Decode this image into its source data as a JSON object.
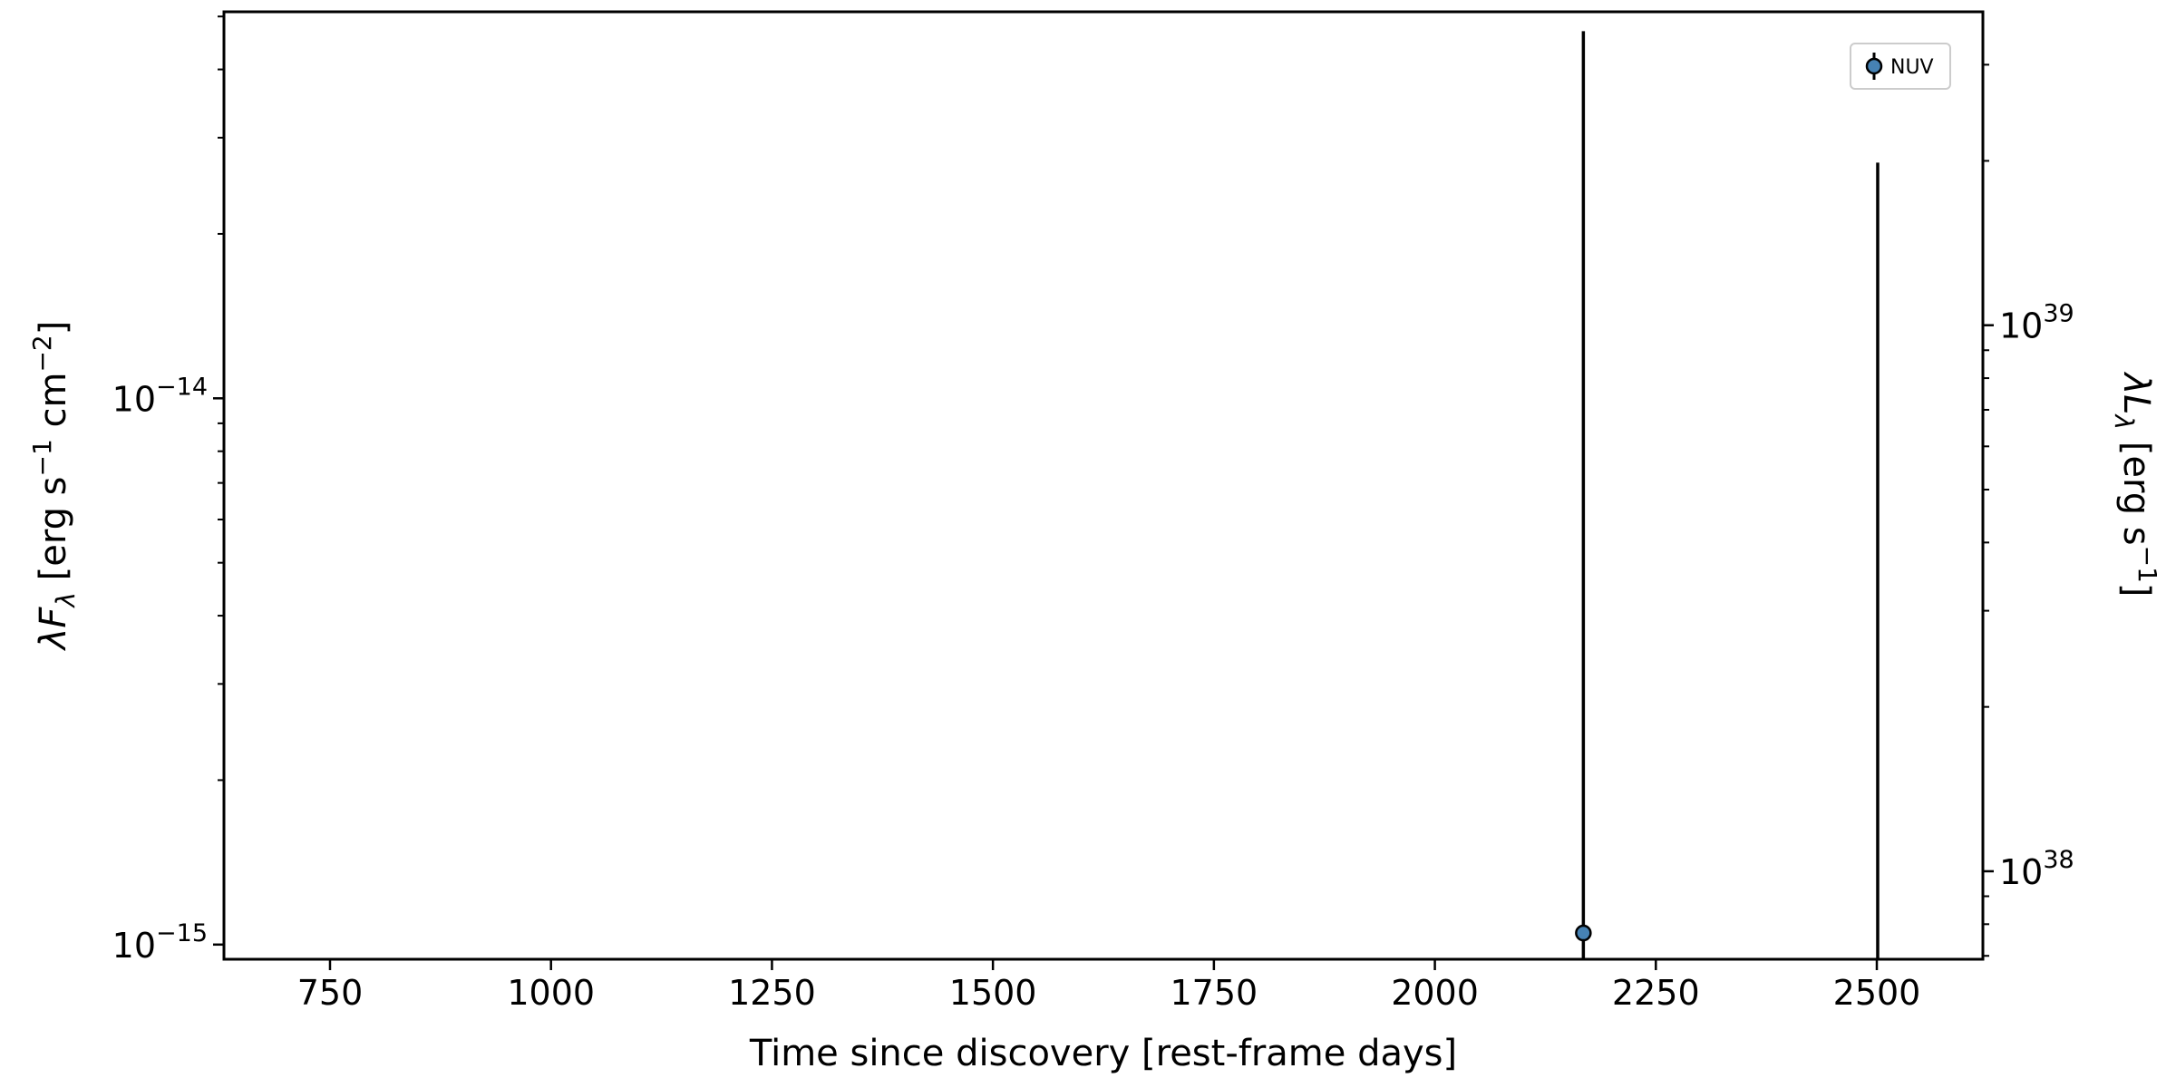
{
  "chart_data": {
    "type": "scatter",
    "xlabel": "Time since discovery [rest-frame days]",
    "ylabel_left": "λF_λ [erg s^-1 cm^-2]",
    "ylabel_right": "λL_λ [erg s^-1]",
    "xlim": [
      630,
      2620
    ],
    "xticks": [
      750,
      1000,
      1250,
      1500,
      1750,
      2000,
      2250,
      2500
    ],
    "y_scale": "log",
    "ylim_left": [
      9.4e-16,
      5.1e-14
    ],
    "ylim_right": [
      6.9e+37,
      3.75e+39
    ],
    "yticks_left_major": [
      {
        "value": 1e-15,
        "base": "10",
        "exp": "−15"
      },
      {
        "value": 1e-14,
        "base": "10",
        "exp": "−14"
      }
    ],
    "yticks_right_major": [
      {
        "value": 1e+38,
        "base": "10",
        "exp": "38"
      },
      {
        "value": 1e+39,
        "base": "10",
        "exp": "39"
      }
    ],
    "grid": false,
    "legend": {
      "placement": "top-right",
      "entries": [
        "NUV"
      ]
    },
    "series": [
      {
        "name": "NUV",
        "marker_color": "#4682b4",
        "points": [
          {
            "x": 2168,
            "y": 1.05e-15,
            "yerr_low": 1.05e-15,
            "yerr_high": 4.7e-14,
            "marker": true
          },
          {
            "x": 2501,
            "y": null,
            "yerr_low": null,
            "yerr_high": 2.7e-14,
            "marker": false
          }
        ]
      }
    ]
  }
}
